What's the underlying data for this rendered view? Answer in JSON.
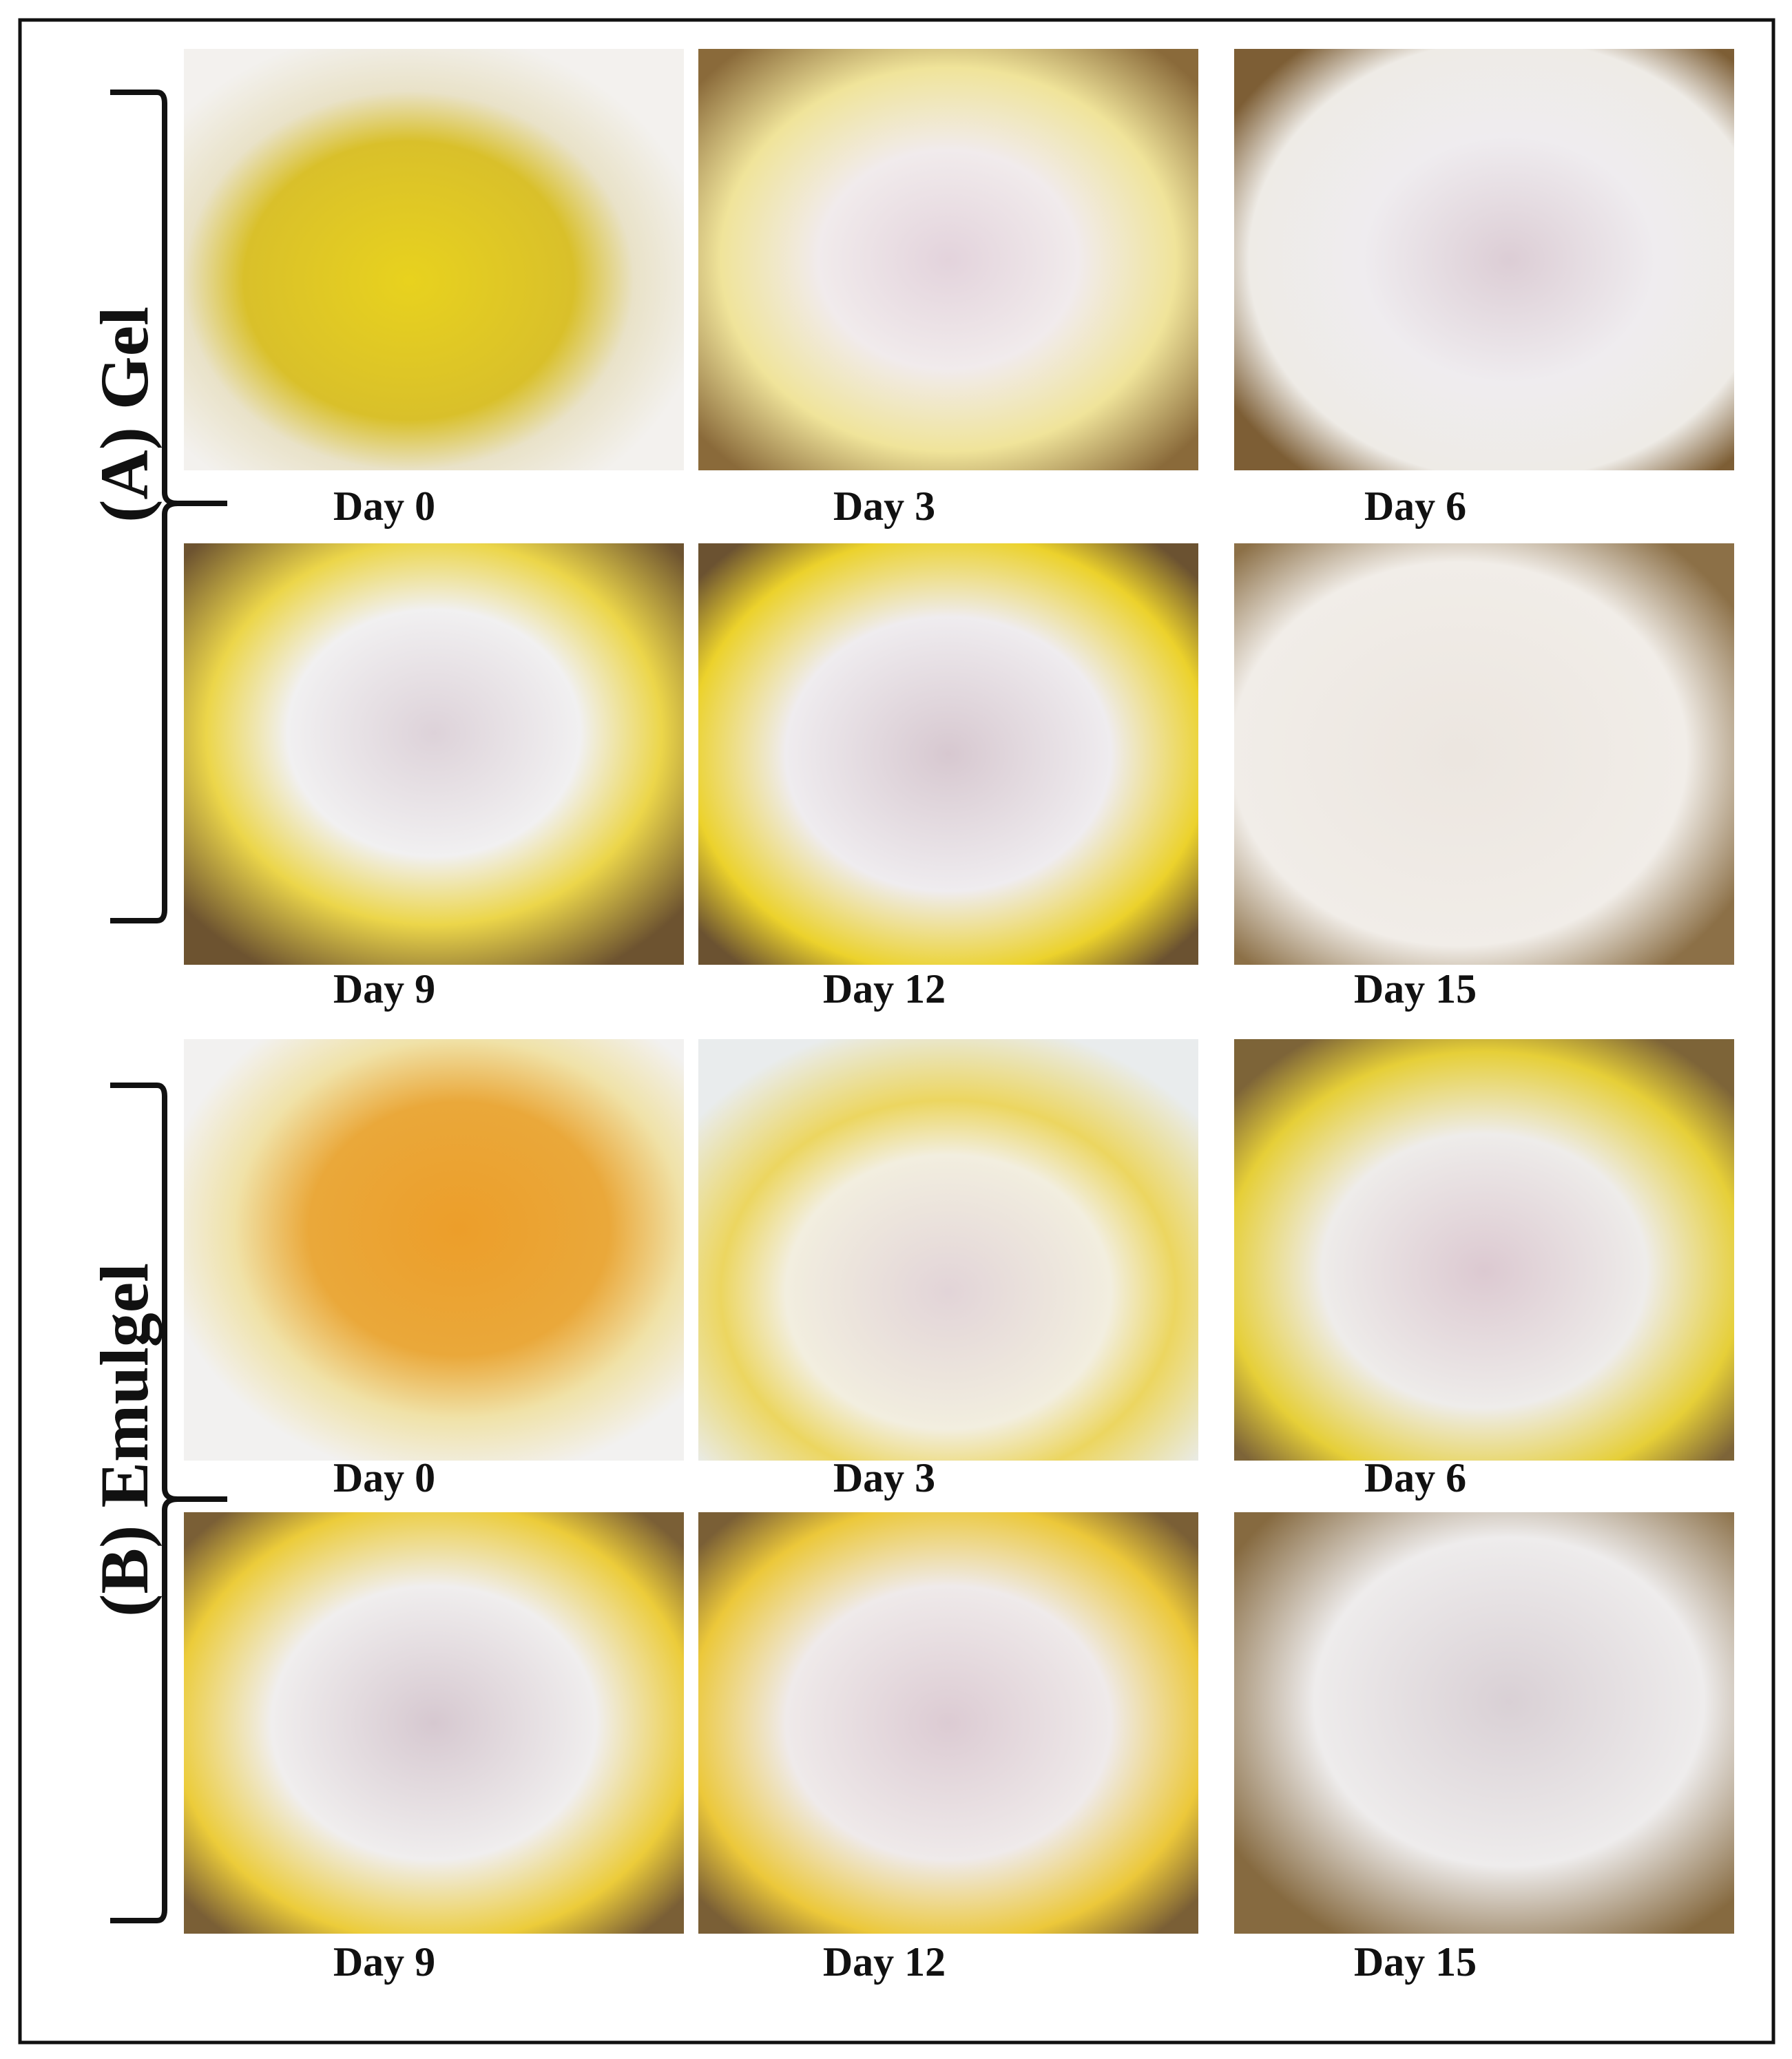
{
  "groups": [
    {
      "label": "(A) Gel",
      "panels": [
        {
          "caption": "Day 0"
        },
        {
          "caption": "Day 3"
        },
        {
          "caption": "Day 6"
        },
        {
          "caption": "Day 9"
        },
        {
          "caption": "Day 12"
        },
        {
          "caption": "Day 15"
        }
      ]
    },
    {
      "label": "(B) Emulgel",
      "panels": [
        {
          "caption": "Day 0"
        },
        {
          "caption": "Day 3"
        },
        {
          "caption": "Day 6"
        },
        {
          "caption": "Day 9"
        },
        {
          "caption": "Day 12"
        },
        {
          "caption": "Day 15"
        }
      ]
    }
  ]
}
